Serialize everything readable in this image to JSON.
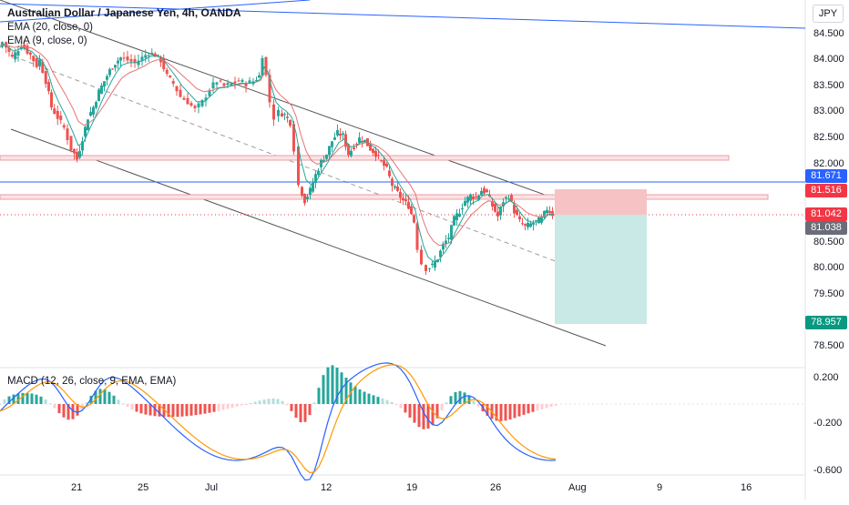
{
  "header": {
    "title": "Australian Dollar / Japanese Yen, 4h, OANDA",
    "indicator_1": "EMA (20, close, 0)",
    "indicator_2": "EMA (9, close, 0)"
  },
  "currency_button": "JPY",
  "macd_label": "MACD (12, 26, close, 9, EMA, EMA)",
  "price_axis": [
    "84.500",
    "84.000",
    "83.500",
    "83.000",
    "82.500",
    "82.000",
    "80.500",
    "80.000",
    "79.500",
    "78.500"
  ],
  "price_tags": [
    {
      "text": "81.671",
      "color": "#2962ff"
    },
    {
      "text": "81.516",
      "color": "#f23645"
    },
    {
      "text": "81.042",
      "color": "#f23645"
    },
    {
      "text": "81.038",
      "color": "#6a6d78"
    },
    {
      "text": "78.957",
      "color": "#089981"
    }
  ],
  "macd_axis": [
    "0.200",
    "-0.200",
    "-0.600"
  ],
  "time_axis": [
    "21",
    "25",
    "Jul",
    "12",
    "19",
    "26",
    "Aug",
    "9",
    "16"
  ],
  "colors": {
    "up": "#26a69a",
    "down": "#ef5350",
    "ema20": "#e57373",
    "ema9": "#26a69a",
    "channel": "#4a4a4a",
    "macd": "#2962ff",
    "signal": "#ff9800"
  },
  "chart_data": {
    "type": "candlestick",
    "symbol": "AUDJPY",
    "timeframe": "4h",
    "ylim": [
      78.2,
      85.1
    ],
    "points": [
      [
        0,
        84.25
      ],
      [
        5,
        84.35
      ],
      [
        15,
        84.05
      ],
      [
        25,
        84.3
      ],
      [
        35,
        84.1
      ],
      [
        42,
        83.9
      ],
      [
        45,
        84.0
      ],
      [
        52,
        83.6
      ],
      [
        58,
        83.1
      ],
      [
        65,
        82.9
      ],
      [
        72,
        82.7
      ],
      [
        80,
        82.3
      ],
      [
        86,
        82.1
      ],
      [
        92,
        82.5
      ],
      [
        98,
        82.9
      ],
      [
        104,
        83.1
      ],
      [
        110,
        83.4
      ],
      [
        116,
        83.6
      ],
      [
        122,
        83.8
      ],
      [
        128,
        83.95
      ],
      [
        134,
        84.05
      ],
      [
        142,
        84.0
      ],
      [
        150,
        83.95
      ],
      [
        158,
        84.05
      ],
      [
        165,
        84.15
      ],
      [
        172,
        84.1
      ],
      [
        178,
        84.0
      ],
      [
        185,
        83.7
      ],
      [
        192,
        83.55
      ],
      [
        200,
        83.3
      ],
      [
        208,
        83.2
      ],
      [
        216,
        83.05
      ],
      [
        224,
        83.2
      ],
      [
        232,
        83.45
      ],
      [
        240,
        83.6
      ],
      [
        248,
        83.5
      ],
      [
        256,
        83.55
      ],
      [
        264,
        83.6
      ],
      [
        272,
        83.55
      ],
      [
        280,
        83.6
      ],
      [
        286,
        83.7
      ],
      [
        290,
        84.1
      ],
      [
        294,
        83.7
      ],
      [
        298,
        83.2
      ],
      [
        303,
        82.9
      ],
      [
        308,
        83.0
      ],
      [
        314,
        82.95
      ],
      [
        320,
        82.8
      ],
      [
        325,
        82.3
      ],
      [
        330,
        81.6
      ],
      [
        336,
        81.3
      ],
      [
        342,
        81.5
      ],
      [
        348,
        81.8
      ],
      [
        354,
        82.05
      ],
      [
        360,
        82.2
      ],
      [
        366,
        82.45
      ],
      [
        372,
        82.6
      ],
      [
        378,
        82.55
      ],
      [
        384,
        82.2
      ],
      [
        390,
        82.35
      ],
      [
        396,
        82.5
      ],
      [
        402,
        82.45
      ],
      [
        408,
        82.3
      ],
      [
        414,
        82.2
      ],
      [
        420,
        82.05
      ],
      [
        426,
        81.9
      ],
      [
        432,
        81.6
      ],
      [
        438,
        81.45
      ],
      [
        444,
        81.3
      ],
      [
        450,
        81.2
      ],
      [
        456,
        80.9
      ],
      [
        460,
        80.4
      ],
      [
        465,
        80.1
      ],
      [
        470,
        80.0
      ],
      [
        476,
        80.05
      ],
      [
        482,
        80.2
      ],
      [
        488,
        80.45
      ],
      [
        494,
        80.6
      ],
      [
        500,
        80.95
      ],
      [
        506,
        81.1
      ],
      [
        512,
        81.3
      ],
      [
        518,
        81.4
      ],
      [
        524,
        81.35
      ],
      [
        530,
        81.5
      ],
      [
        536,
        81.45
      ],
      [
        542,
        81.2
      ],
      [
        548,
        81.0
      ],
      [
        554,
        81.3
      ],
      [
        560,
        81.4
      ],
      [
        566,
        81.1
      ],
      [
        572,
        80.9
      ],
      [
        578,
        80.8
      ],
      [
        584,
        80.85
      ],
      [
        590,
        80.9
      ],
      [
        596,
        80.95
      ],
      [
        602,
        81.15
      ],
      [
        608,
        81.04
      ]
    ],
    "levels": [
      {
        "name": "blue line",
        "value": 81.671
      },
      {
        "name": "resistance zone",
        "value": 81.516
      },
      {
        "name": "current",
        "value": 81.042
      },
      {
        "name": "close",
        "value": 81.038
      },
      {
        "name": "target",
        "value": 78.957
      }
    ],
    "macd_range": [
      -0.75,
      0.3
    ]
  }
}
